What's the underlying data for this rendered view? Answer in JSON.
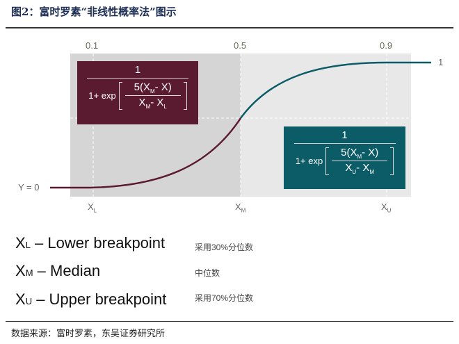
{
  "header": {
    "title": "图2：富时罗素“非线性概率法”图示"
  },
  "diagram": {
    "top_ticks": [
      "0.1",
      "0.5",
      "0.9"
    ],
    "y_left_label": "Y = 0",
    "y_right_label": "1",
    "x_labels": [
      {
        "base": "X",
        "sub": "L"
      },
      {
        "base": "X",
        "sub": "M"
      },
      {
        "base": "X",
        "sub": "U"
      }
    ],
    "lower_formula": {
      "numerator": "1",
      "prefix": "1+ exp",
      "inner_num": "5(X",
      "inner_num_sub": "M",
      "inner_num_tail": "- X)",
      "inner_den_a": "X",
      "inner_den_a_sub": "M",
      "inner_den_b": "- X",
      "inner_den_b_sub": "L"
    },
    "upper_formula": {
      "numerator": "1",
      "prefix": "1+ exp",
      "inner_num": "5(X",
      "inner_num_sub": "M",
      "inner_num_tail": "- X)",
      "inner_den_a": "X",
      "inner_den_a_sub": "U",
      "inner_den_b": "- X",
      "inner_den_b_sub": "M"
    },
    "colors": {
      "lower": "#5a1a30",
      "upper": "#0b5c66",
      "panel_left": "#d5d5d5",
      "panel_right": "#e8e8e8"
    }
  },
  "legend": [
    {
      "base": "X",
      "sub": "L",
      "text": " – Lower breakpoint",
      "note": "采用30%分位数"
    },
    {
      "base": "X",
      "sub": "M",
      "text": " – Median",
      "note": "中位数"
    },
    {
      "base": "X",
      "sub": "U",
      "text": " – Upper breakpoint",
      "note": "采用70%分位数"
    }
  ],
  "footer": {
    "source": "数据来源：富时罗素，东吴证券研究所"
  }
}
